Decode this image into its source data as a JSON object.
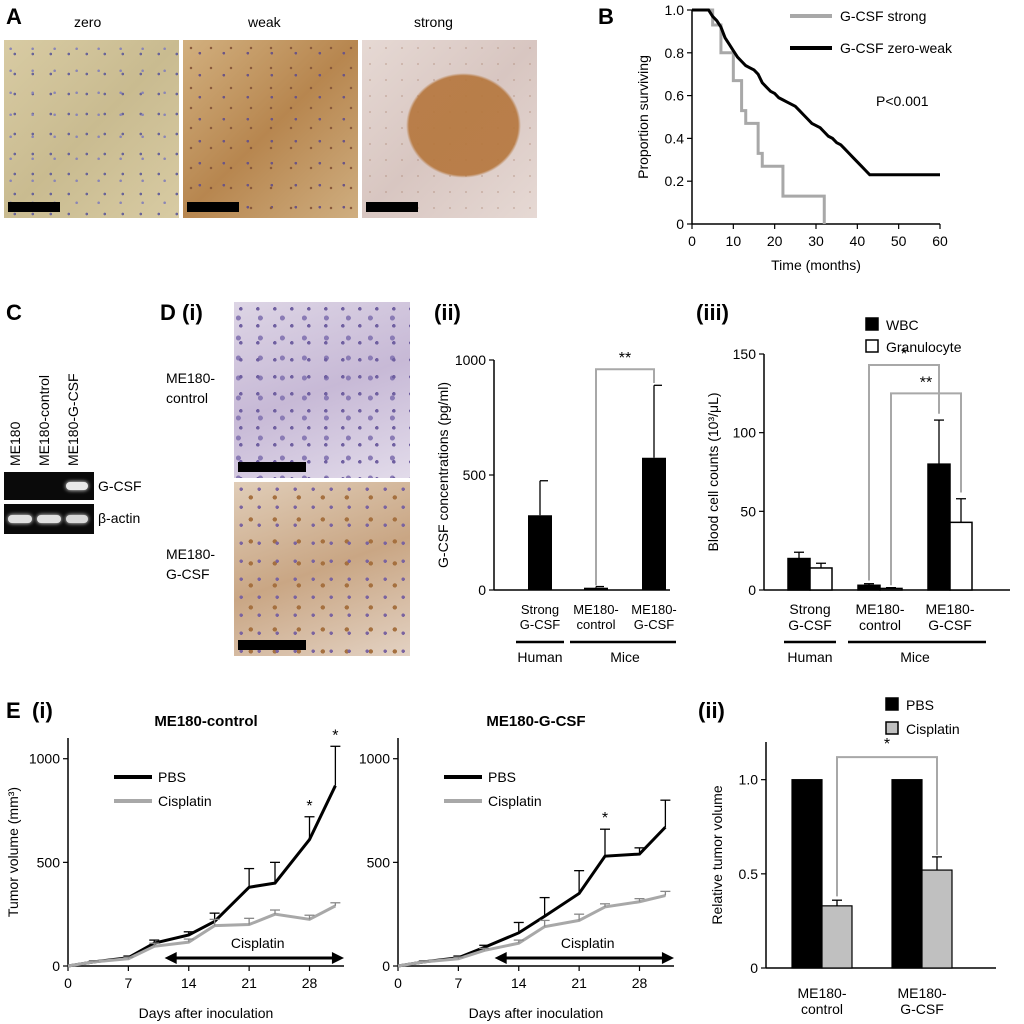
{
  "panels": {
    "A": {
      "label": "A",
      "images": [
        {
          "title": "zero",
          "color_bg": "#d9c9a0",
          "color_cell": "#5c5a8f"
        },
        {
          "title": "weak",
          "color_bg": "#c9a275",
          "color_cell": "#9c6a45"
        },
        {
          "title": "strong",
          "color_bg": "#e2d3cf",
          "color_cell": "#b5773f"
        }
      ]
    },
    "B": {
      "label": "B",
      "pvalue": "P<0.001",
      "chart_data": {
        "type": "line",
        "xlabel": "Time (months)",
        "ylabel": "Proportion surviving",
        "xlim": [
          0,
          60
        ],
        "ylim": [
          0,
          1.0
        ],
        "xticks": [
          "0",
          "10",
          "20",
          "30",
          "40",
          "50",
          "60"
        ],
        "yticks": [
          "0",
          "0.2",
          "0.4",
          "0.6",
          "0.8",
          "1.0"
        ],
        "legend_position": "top-right",
        "series": [
          {
            "name": "G-CSF strong",
            "color": "#a8a8a8",
            "x": [
              0,
              5,
              5,
              7,
              7,
              10,
              10,
              12,
              12,
              13,
              13,
              16,
              16,
              17,
              17,
              22,
              22,
              32,
              32
            ],
            "y": [
              1.0,
              1.0,
              0.93,
              0.93,
              0.8,
              0.8,
              0.67,
              0.67,
              0.53,
              0.53,
              0.47,
              0.47,
              0.33,
              0.33,
              0.27,
              0.27,
              0.13,
              0.13,
              0.0
            ]
          },
          {
            "name": "G-CSF zero-weak",
            "color": "#000000",
            "x": [
              0,
              4,
              5,
              6,
              7,
              8,
              9,
              10,
              11,
              12,
              13,
              14,
              15,
              16,
              17,
              18,
              19,
              20,
              21,
              22,
              23,
              24,
              25,
              26,
              27,
              28,
              29,
              30,
              31,
              32,
              33,
              34,
              35,
              36,
              37,
              38,
              39,
              40,
              41,
              42,
              43,
              44,
              45,
              60
            ],
            "y": [
              1.0,
              1.0,
              0.97,
              0.95,
              0.92,
              0.87,
              0.84,
              0.81,
              0.78,
              0.76,
              0.74,
              0.73,
              0.72,
              0.7,
              0.66,
              0.64,
              0.62,
              0.61,
              0.59,
              0.58,
              0.57,
              0.56,
              0.55,
              0.53,
              0.51,
              0.49,
              0.47,
              0.46,
              0.45,
              0.43,
              0.41,
              0.4,
              0.38,
              0.37,
              0.35,
              0.33,
              0.31,
              0.29,
              0.27,
              0.25,
              0.23,
              0.23,
              0.23,
              0.23
            ]
          }
        ]
      }
    },
    "C": {
      "label": "C",
      "lanes": [
        "ME180",
        "ME180-control",
        "ME180-G-CSF"
      ],
      "bands": [
        "G-CSF",
        "β-actin"
      ]
    },
    "D": {
      "label": "D",
      "i": {
        "label": "(i)",
        "rows": [
          "ME180-\ncontrol",
          "ME180-\nG-CSF"
        ]
      },
      "ii": {
        "label": "(ii)",
        "chart_data": {
          "type": "bar",
          "ylabel": "G-CSF concentrations (pg/ml)",
          "ylim": [
            0,
            1000
          ],
          "yticks": [
            "0",
            "500",
            "1000"
          ],
          "categories": [
            "Strong\nG-CSF",
            "ME180-\ncontrol",
            "ME180-\nG-CSF"
          ],
          "values": [
            325,
            10,
            575
          ],
          "errors": [
            150,
            5,
            315
          ],
          "groups": [
            {
              "name": "Human",
              "members": [
                0
              ]
            },
            {
              "name": "Mice",
              "members": [
                1,
                2
              ]
            }
          ],
          "significance": [
            {
              "from": 1,
              "to": 2,
              "label": "**"
            }
          ]
        }
      },
      "iii": {
        "label": "(iii)",
        "chart_data": {
          "type": "bar",
          "ylabel": "Blood cell counts (10³/μL)",
          "ylim": [
            0,
            150
          ],
          "yticks": [
            "0",
            "50",
            "100",
            "150"
          ],
          "categories": [
            "Strong\nG-CSF",
            "ME180-\ncontrol",
            "ME180-\nG-CSF"
          ],
          "series": [
            {
              "name": "WBC",
              "values": [
                20,
                3,
                80
              ],
              "errors": [
                4,
                1,
                28
              ],
              "color": "#000000"
            },
            {
              "name": "Granulocyte",
              "values": [
                14,
                1,
                43
              ],
              "errors": [
                3,
                0.5,
                15
              ],
              "color": "#ffffff"
            }
          ],
          "groups": [
            {
              "name": "Human",
              "members": [
                0
              ]
            },
            {
              "name": "Mice",
              "members": [
                1,
                2
              ]
            }
          ],
          "significance": [
            {
              "label": "*"
            },
            {
              "label": "**"
            }
          ]
        }
      }
    },
    "E": {
      "label": "E",
      "i": {
        "label": "(i)",
        "charts": [
          {
            "title": "ME180-control",
            "ylabel": "Tumor volume (mm³)",
            "xlabel": "Days after inoculation",
            "arrow_label": "Cisplatin",
            "xlim": [
              0,
              32
            ],
            "ylim": [
              0,
              1100
            ],
            "xticks": [
              "0",
              "7",
              "14",
              "21",
              "28"
            ],
            "yticks": [
              "0",
              "500",
              "1000"
            ],
            "series": [
              {
                "name": "PBS",
                "color": "#000000",
                "x": [
                  0,
                  3,
                  7,
                  10,
                  14,
                  17,
                  21,
                  24,
                  28,
                  31
                ],
                "y": [
                  0,
                  20,
                  40,
                  110,
                  150,
                  215,
                  380,
                  400,
                  610,
                  870
                ],
                "err": [
                  0,
                  5,
                  8,
                  15,
                  15,
                  40,
                  90,
                  100,
                  110,
                  190
                ]
              },
              {
                "name": "Cisplatin",
                "color": "#a8a8a8",
                "x": [
                  0,
                  3,
                  7,
                  10,
                  14,
                  17,
                  21,
                  24,
                  28,
                  31
                ],
                "y": [
                  0,
                  20,
                  35,
                  95,
                  115,
                  195,
                  200,
                  250,
                  225,
                  290
                ],
                "err": [
                  0,
                  5,
                  8,
                  15,
                  15,
                  30,
                  30,
                  20,
                  20,
                  15
                ]
              }
            ],
            "stars": [
              {
                "x": 28,
                "label": "*"
              },
              {
                "x": 31,
                "label": "*"
              }
            ]
          },
          {
            "title": "ME180-G-CSF",
            "xlabel": "Days after inoculation",
            "arrow_label": "Cisplatin",
            "xlim": [
              0,
              32
            ],
            "ylim": [
              0,
              1100
            ],
            "xticks": [
              "0",
              "7",
              "14",
              "21",
              "28"
            ],
            "yticks": [
              "0",
              "500",
              "1000"
            ],
            "series": [
              {
                "name": "PBS",
                "color": "#000000",
                "x": [
                  0,
                  3,
                  7,
                  10,
                  14,
                  17,
                  21,
                  24,
                  28,
                  31
                ],
                "y": [
                  0,
                  20,
                  40,
                  90,
                  160,
                  240,
                  350,
                  530,
                  540,
                  670
                ],
                "err": [
                  0,
                  5,
                  8,
                  10,
                  50,
                  90,
                  110,
                  130,
                  30,
                  130
                ]
              },
              {
                "name": "Cisplatin",
                "color": "#a8a8a8",
                "x": [
                  0,
                  3,
                  7,
                  10,
                  14,
                  17,
                  21,
                  24,
                  28,
                  31
                ],
                "y": [
                  0,
                  20,
                  35,
                  75,
                  110,
                  190,
                  220,
                  285,
                  310,
                  340
                ],
                "err": [
                  0,
                  5,
                  8,
                  10,
                  15,
                  30,
                  30,
                  15,
                  15,
                  20
                ]
              }
            ],
            "stars": [
              {
                "x": 24,
                "label": "*"
              }
            ]
          }
        ]
      },
      "ii": {
        "label": "(ii)",
        "chart_data": {
          "type": "bar",
          "ylabel": "Relative tumor volume",
          "ylim": [
            0,
            1.2
          ],
          "yticks": [
            "0",
            "0.5",
            "1.0"
          ],
          "categories": [
            "ME180-\ncontrol",
            "ME180-\nG-CSF"
          ],
          "series": [
            {
              "name": "PBS",
              "values": [
                1.0,
                1.0
              ],
              "errors": [
                0,
                0
              ],
              "color": "#000000"
            },
            {
              "name": "Cisplatin",
              "values": [
                0.33,
                0.52
              ],
              "errors": [
                0.03,
                0.07
              ],
              "color": "#c0c0c0"
            }
          ],
          "significance": [
            {
              "label": "*"
            }
          ]
        }
      }
    }
  }
}
